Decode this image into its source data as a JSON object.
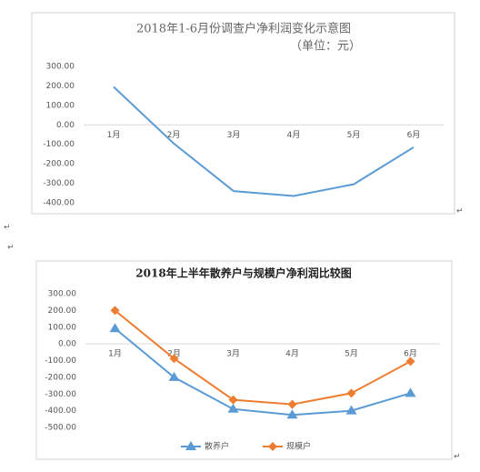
{
  "paragraph_mark": "↵",
  "chart_data": [
    {
      "type": "line",
      "title": "2018年1-6月份调查户净利润变化示意图",
      "subtitle": "（单位：元）",
      "categories": [
        "1月",
        "2月",
        "3月",
        "4月",
        "5月",
        "6月"
      ],
      "series": [
        {
          "name": null,
          "color": "#5b9bd5",
          "marker": "none",
          "values": [
            195,
            -95,
            -340,
            -365,
            -305,
            -115
          ]
        }
      ],
      "ylim": [
        -400,
        300
      ],
      "yticks": [
        {
          "value": 300,
          "label": "300.00"
        },
        {
          "value": 200,
          "label": "200.00"
        },
        {
          "value": 100,
          "label": "100.00"
        },
        {
          "value": 0,
          "label": "0.00"
        },
        {
          "value": -100,
          "label": "-100.00"
        },
        {
          "value": -200,
          "label": "-200.00"
        },
        {
          "value": -300,
          "label": "-300.00"
        },
        {
          "value": -400,
          "label": "-400.00"
        }
      ],
      "grid": false,
      "legend": "none"
    },
    {
      "type": "line",
      "title": "2018年上半年散养户与规模户净利润比较图",
      "categories": [
        "1月",
        "2月",
        "3月",
        "4月",
        "5月",
        "6月"
      ],
      "series": [
        {
          "name": "散养户",
          "color": "#5b9bd5",
          "marker": "triangle",
          "values": [
            92,
            -200,
            -390,
            -425,
            -400,
            -295
          ]
        },
        {
          "name": "规模户",
          "color": "#ed7d31",
          "marker": "diamond",
          "values": [
            200,
            -88,
            -335,
            -362,
            -295,
            -105
          ]
        }
      ],
      "ylim": [
        -500,
        300
      ],
      "yticks": [
        {
          "value": 300,
          "label": "300.00"
        },
        {
          "value": 200,
          "label": "200.00"
        },
        {
          "value": 100,
          "label": "100.00"
        },
        {
          "value": 0,
          "label": "0.00"
        },
        {
          "value": -100,
          "label": "-100.00"
        },
        {
          "value": -200,
          "label": "-200.00"
        },
        {
          "value": -300,
          "label": "-300.00"
        },
        {
          "value": -400,
          "label": "-400.00"
        },
        {
          "value": -500,
          "label": "-500.00"
        }
      ],
      "grid": false,
      "legend": "bottom"
    }
  ]
}
